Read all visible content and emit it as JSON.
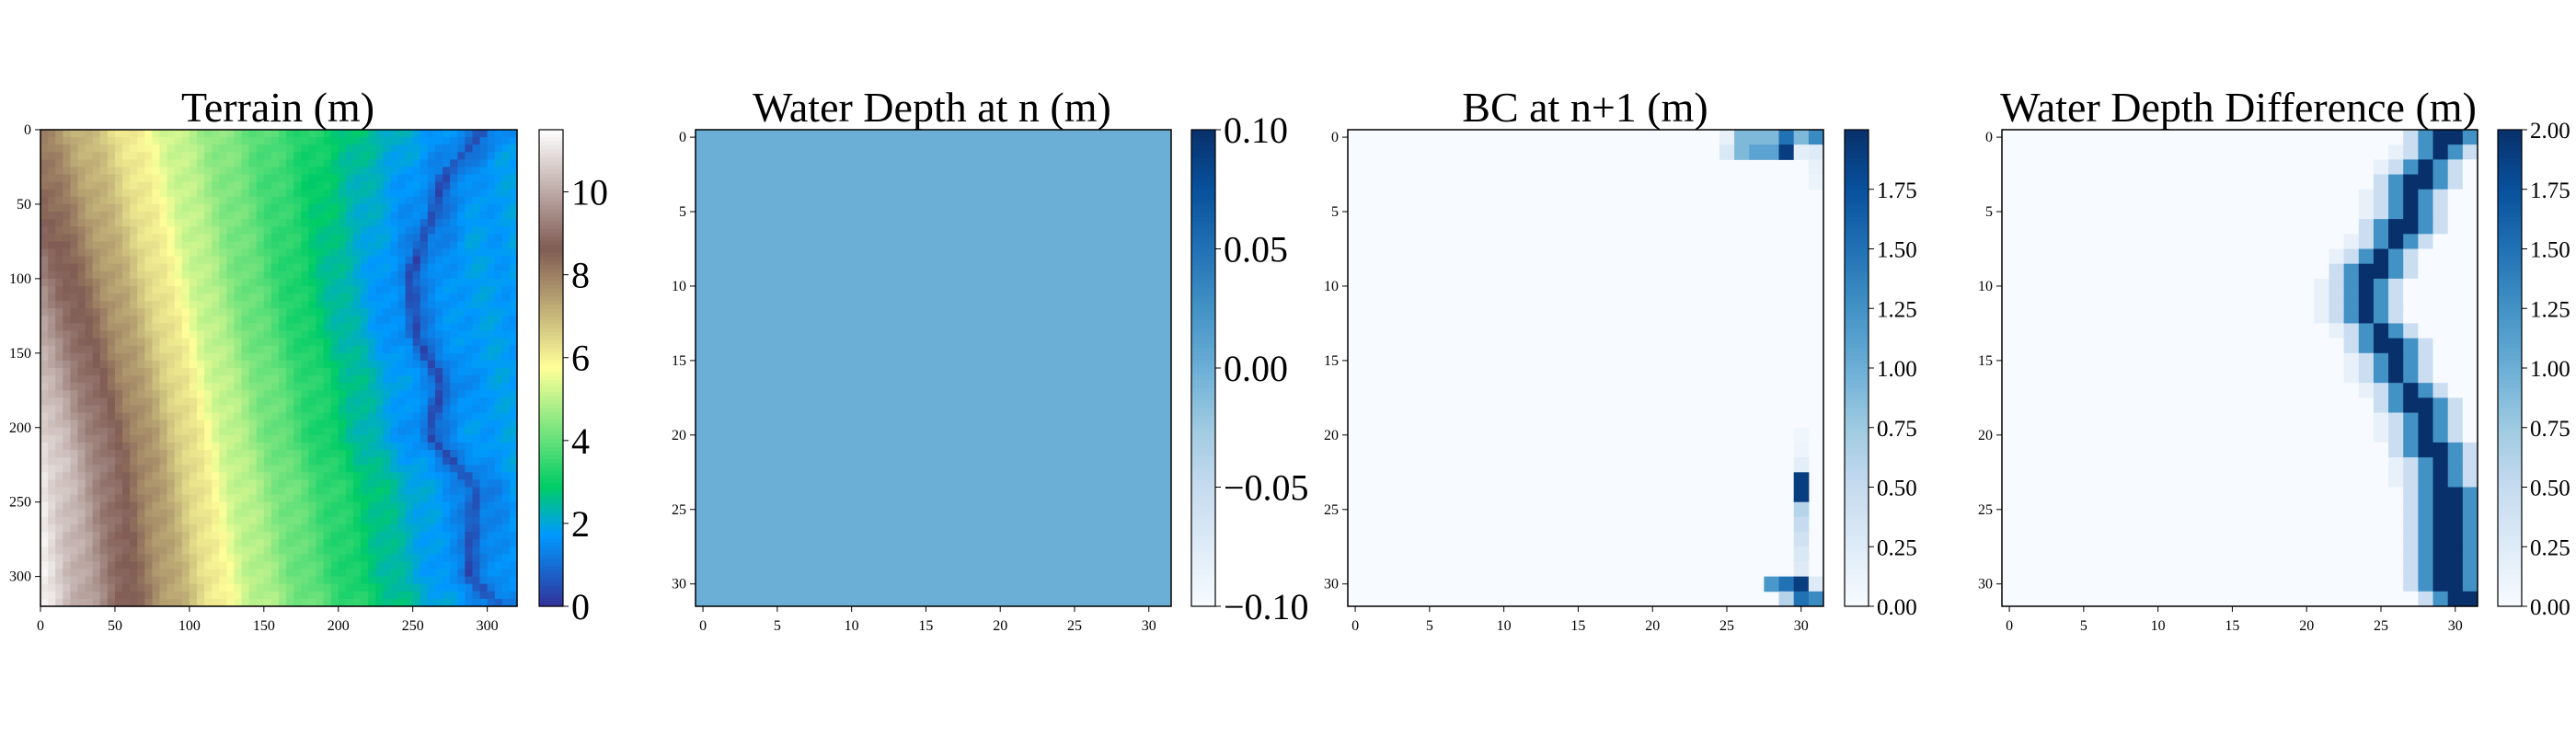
{
  "chart_data": [
    {
      "type": "heatmap",
      "title": "Terrain (m)",
      "xlabel": "",
      "ylabel": "",
      "xlim": [
        0,
        320
      ],
      "ylim": [
        320,
        0
      ],
      "x_ticks": [
        "0",
        "50",
        "100",
        "150",
        "200",
        "250",
        "300"
      ],
      "y_ticks": [
        "0",
        "50",
        "100",
        "150",
        "200",
        "250",
        "300"
      ],
      "colormap": "terrain",
      "colorbar_range": [
        0,
        11.5
      ],
      "colorbar_ticks": [
        "0",
        "2",
        "4",
        "6",
        "8",
        "10"
      ],
      "terrain_profile": {
        "ridge_x_by_row": [
          [
            0,
            75
          ],
          [
            100,
            95
          ],
          [
            200,
            115
          ],
          [
            320,
            130
          ]
        ],
        "channel_x_by_row": [
          [
            0,
            298
          ],
          [
            30,
            272
          ],
          [
            60,
            262
          ],
          [
            100,
            248
          ],
          [
            140,
            252
          ],
          [
            170,
            270
          ],
          [
            205,
            260
          ],
          [
            240,
            292
          ],
          [
            270,
            290
          ],
          [
            300,
            288
          ],
          [
            320,
            308
          ]
        ],
        "max_elevation_m": 11.2,
        "channel_elevation_m": 0.3
      }
    },
    {
      "type": "heatmap",
      "title": "Water Depth at n (m)",
      "xlabel": "",
      "ylabel": "",
      "grid_size": [
        32,
        32
      ],
      "x_ticks": [
        "0",
        "5",
        "10",
        "15",
        "20",
        "25",
        "30"
      ],
      "y_ticks": [
        "0",
        "5",
        "10",
        "15",
        "20",
        "25",
        "30"
      ],
      "colormap": "Blues",
      "colorbar_range": [
        -0.1,
        0.1
      ],
      "colorbar_ticks": [
        "0.10",
        "0.05",
        "0.00",
        "−0.05",
        "−0.10"
      ],
      "uniform_value": 0.0
    },
    {
      "type": "heatmap",
      "title": "BC at n+1 (m)",
      "xlabel": "",
      "ylabel": "",
      "grid_size": [
        32,
        32
      ],
      "x_ticks": [
        "0",
        "5",
        "10",
        "15",
        "20",
        "25",
        "30"
      ],
      "y_ticks": [
        "0",
        "5",
        "10",
        "15",
        "20",
        "25",
        "30"
      ],
      "colormap": "Blues",
      "colorbar_range": [
        0,
        2.0
      ],
      "colorbar_ticks": [
        "0.00",
        "0.25",
        "0.50",
        "0.75",
        "1.00",
        "1.25",
        "1.50",
        "1.75"
      ],
      "cells": [
        [
          0,
          25,
          0.15
        ],
        [
          0,
          26,
          0.9
        ],
        [
          0,
          27,
          0.9
        ],
        [
          0,
          28,
          0.9
        ],
        [
          0,
          29,
          1.5
        ],
        [
          0,
          30,
          0.9
        ],
        [
          0,
          31,
          1.3
        ],
        [
          1,
          25,
          0.3
        ],
        [
          1,
          26,
          0.9
        ],
        [
          1,
          27,
          1.1
        ],
        [
          1,
          28,
          1.1
        ],
        [
          1,
          29,
          1.9
        ],
        [
          1,
          30,
          0.2
        ],
        [
          1,
          31,
          0.25
        ],
        [
          2,
          31,
          0.15
        ],
        [
          3,
          31,
          0.12
        ],
        [
          20,
          30,
          0.08
        ],
        [
          21,
          30,
          0.1
        ],
        [
          22,
          30,
          0.2
        ],
        [
          23,
          30,
          1.9
        ],
        [
          24,
          30,
          1.9
        ],
        [
          25,
          30,
          0.6
        ],
        [
          26,
          30,
          0.5
        ],
        [
          27,
          30,
          0.4
        ],
        [
          28,
          30,
          0.3
        ],
        [
          29,
          30,
          0.25
        ],
        [
          30,
          28,
          1.2
        ],
        [
          30,
          29,
          1.5
        ],
        [
          30,
          30,
          1.9
        ],
        [
          30,
          31,
          0.25
        ],
        [
          31,
          29,
          0.6
        ],
        [
          31,
          30,
          1.5
        ],
        [
          31,
          31,
          1.3
        ]
      ]
    },
    {
      "type": "heatmap",
      "title": "Water Depth Difference (m)",
      "xlabel": "",
      "ylabel": "",
      "grid_size": [
        32,
        32
      ],
      "x_ticks": [
        "0",
        "5",
        "10",
        "15",
        "20",
        "25",
        "30"
      ],
      "y_ticks": [
        "0",
        "5",
        "10",
        "15",
        "20",
        "25",
        "30"
      ],
      "colormap": "Blues",
      "colorbar_range": [
        0,
        2.0
      ],
      "colorbar_ticks": [
        "0.00",
        "0.25",
        "0.50",
        "0.75",
        "1.00",
        "1.25",
        "1.50",
        "1.75",
        "2.00"
      ],
      "channel_center_by_row": [
        [
          0,
          29.5
        ],
        [
          3,
          27.5
        ],
        [
          6,
          26.5
        ],
        [
          9,
          24.5
        ],
        [
          12,
          24
        ],
        [
          14,
          25.5
        ],
        [
          16,
          26
        ],
        [
          18,
          27.5
        ],
        [
          21,
          28.5
        ],
        [
          24,
          29.5
        ],
        [
          27,
          29.5
        ],
        [
          30,
          29.5
        ],
        [
          31,
          30.5
        ]
      ],
      "channel_peak_m": 2.0
    }
  ]
}
